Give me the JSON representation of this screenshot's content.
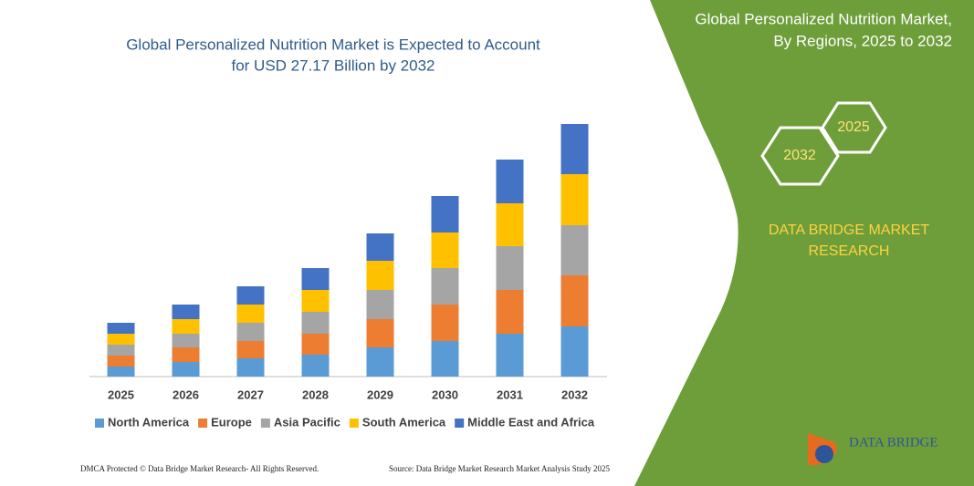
{
  "chart_data": {
    "type": "bar",
    "stacked": true,
    "title": [
      "Global Personalized Nutrition Market is Expected to Account",
      "for USD 27.17 Billion by 2032"
    ],
    "categories": [
      "2025",
      "2026",
      "2027",
      "2028",
      "2029",
      "2030",
      "2031",
      "2032"
    ],
    "series": [
      {
        "name": "North America",
        "color": "#5b9bd5",
        "values": [
          11,
          16,
          20,
          24,
          32,
          39,
          47,
          55
        ]
      },
      {
        "name": "Europe",
        "color": "#ed7d31",
        "values": [
          12,
          16,
          19,
          23,
          31,
          40,
          48,
          56
        ]
      },
      {
        "name": "Asia Pacific",
        "color": "#a5a5a5",
        "values": [
          12,
          15,
          20,
          24,
          32,
          40,
          48,
          55
        ]
      },
      {
        "name": "South America",
        "color": "#ffc000",
        "values": [
          12,
          16,
          20,
          24,
          32,
          39,
          47,
          56
        ]
      },
      {
        "name": "Middle East and Africa",
        "color": "#4472c4",
        "values": [
          12,
          16,
          20,
          24,
          30,
          40,
          48,
          55
        ]
      }
    ],
    "legend": "bottom"
  },
  "sidebar": {
    "title": [
      "Global Personalized Nutrition Market,",
      "By Regions, 2025 to 2032"
    ],
    "hexagons": [
      "2025",
      "2032"
    ],
    "brand": [
      "DATA BRIDGE MARKET",
      "RESEARCH"
    ],
    "logo": "DATA BRIDGE"
  },
  "footer": {
    "left": "DMCA Protected © Data Bridge Market Research-  All Rights Reserved.",
    "right": "Source: Data Bridge Market Research  Market Analysis Study 2025"
  }
}
